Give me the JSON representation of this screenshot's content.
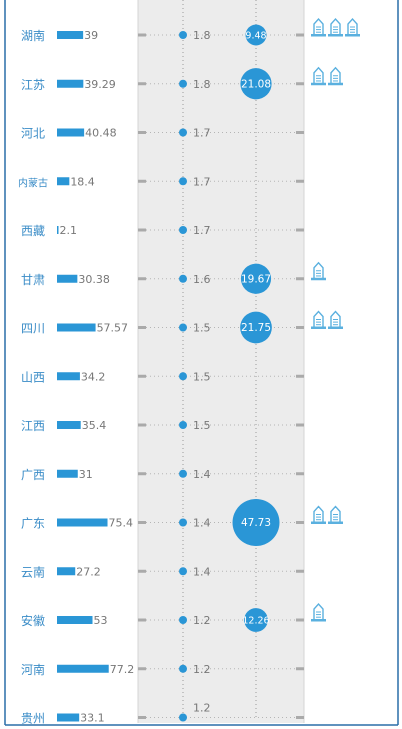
{
  "theme": {
    "province_color": "#3a8cc7",
    "bar_color": "#2a96d6",
    "value_text_color": "#777777",
    "dot_color": "#2a96d6",
    "bubble_color": "#2a96d6",
    "icon_color": "#5ab0df",
    "band_color": "#ececec",
    "border_color": "#2a6fa8"
  },
  "chart_data": {
    "type": "table",
    "rows": [
      {
        "province": "湖南",
        "bar": 39,
        "bar_label": "39",
        "ratio": 1.8,
        "ratio_label": "1.8",
        "bubble": 9.48,
        "bubble_label": "9.48",
        "icons": 3
      },
      {
        "province": "江苏",
        "bar": 39.29,
        "bar_label": "39.29",
        "ratio": 1.8,
        "ratio_label": "1.8",
        "bubble": 21.08,
        "bubble_label": "21.08",
        "icons": 2
      },
      {
        "province": "河北",
        "bar": 40.48,
        "bar_label": "40.48",
        "ratio": 1.7,
        "ratio_label": "1.7",
        "bubble": null,
        "bubble_label": "",
        "icons": 0
      },
      {
        "province": "内蒙古",
        "bar": 18.4,
        "bar_label": "18.4",
        "ratio": 1.7,
        "ratio_label": "1.7",
        "bubble": null,
        "bubble_label": "",
        "icons": 0
      },
      {
        "province": "西藏",
        "bar": 2.1,
        "bar_label": "2.1",
        "ratio": 1.7,
        "ratio_label": "1.7",
        "bubble": null,
        "bubble_label": "",
        "icons": 0
      },
      {
        "province": "甘肃",
        "bar": 30.38,
        "bar_label": "30.38",
        "ratio": 1.6,
        "ratio_label": "1.6",
        "bubble": 19.67,
        "bubble_label": "19.67",
        "icons": 1
      },
      {
        "province": "四川",
        "bar": 57.57,
        "bar_label": "57.57",
        "ratio": 1.5,
        "ratio_label": "1.5",
        "bubble": 21.75,
        "bubble_label": "21.75",
        "icons": 2
      },
      {
        "province": "山西",
        "bar": 34.2,
        "bar_label": "34.2",
        "ratio": 1.5,
        "ratio_label": "1.5",
        "bubble": null,
        "bubble_label": "",
        "icons": 0
      },
      {
        "province": "江西",
        "bar": 35.4,
        "bar_label": "35.4",
        "ratio": 1.5,
        "ratio_label": "1.5",
        "bubble": null,
        "bubble_label": "",
        "icons": 0
      },
      {
        "province": "广西",
        "bar": 31,
        "bar_label": "31",
        "ratio": 1.4,
        "ratio_label": "1.4",
        "bubble": null,
        "bubble_label": "",
        "icons": 0
      },
      {
        "province": "广东",
        "bar": 75.4,
        "bar_label": "75.4",
        "ratio": 1.4,
        "ratio_label": "1.4",
        "bubble": 47.73,
        "bubble_label": "47.73",
        "icons": 2
      },
      {
        "province": "云南",
        "bar": 27.2,
        "bar_label": "27.2",
        "ratio": 1.4,
        "ratio_label": "1.4",
        "bubble": null,
        "bubble_label": "",
        "icons": 0
      },
      {
        "province": "安徽",
        "bar": 53,
        "bar_label": "53",
        "ratio": 1.2,
        "ratio_label": "1.2",
        "bubble": 12.26,
        "bubble_label": "12.26",
        "icons": 1
      },
      {
        "province": "河南",
        "bar": 77.2,
        "bar_label": "77.2",
        "ratio": 1.2,
        "ratio_label": "1.2",
        "bubble": null,
        "bubble_label": "",
        "icons": 0
      },
      {
        "province": "贵州",
        "bar": 33.1,
        "bar_label": "33.1",
        "ratio": 1.2,
        "ratio_label": "1.2",
        "bubble": null,
        "bubble_label": "",
        "icons": 0
      }
    ]
  }
}
